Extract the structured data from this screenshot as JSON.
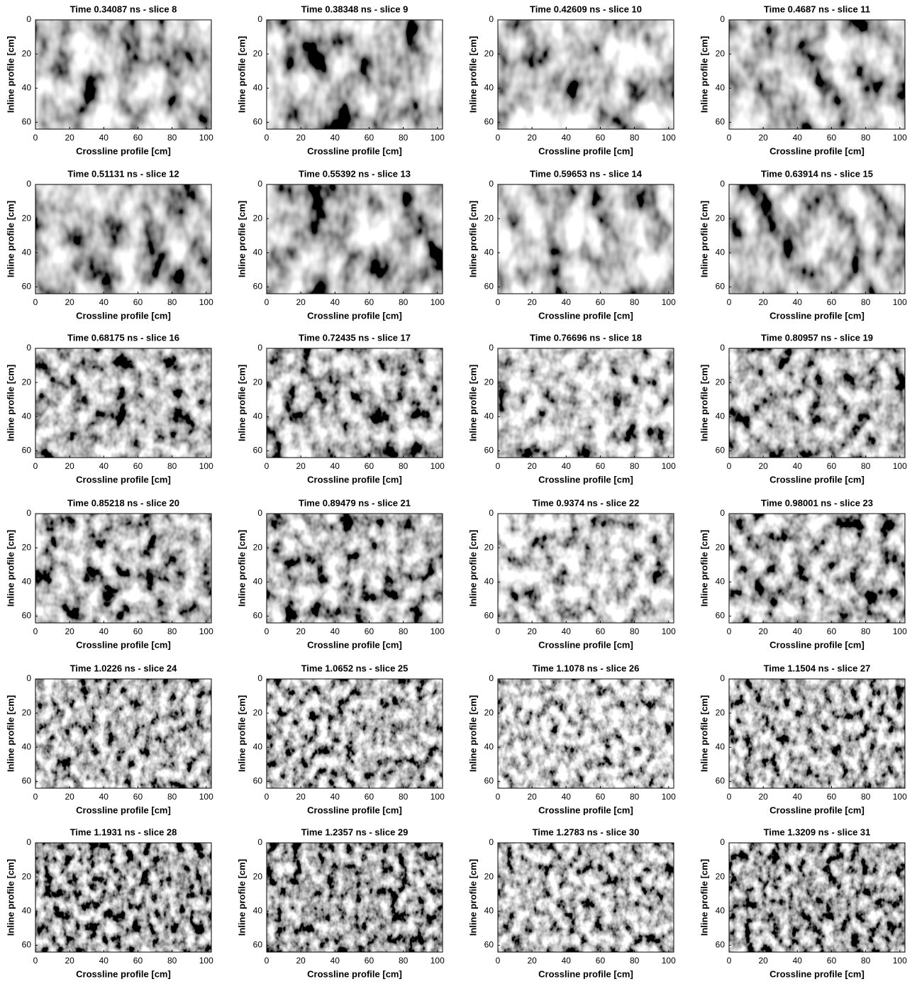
{
  "chart_data": [
    {
      "type": "heatmap",
      "title": "Time 0.34087 ns - slice 8",
      "xlabel": "Crossline profile [cm]",
      "ylabel": "Inline profile [cm]",
      "xlim": [
        0,
        103
      ],
      "ylim": [
        0,
        64
      ],
      "invert_y": true,
      "xticks": [
        0,
        20,
        40,
        60,
        80,
        100
      ],
      "yticks": [
        0,
        20,
        40,
        60
      ],
      "colormap": "gray"
    },
    {
      "type": "heatmap",
      "title": "Time 0.38348 ns - slice 9",
      "xlabel": "Crossline profile [cm]",
      "ylabel": "Inline profile [cm]",
      "xlim": [
        0,
        103
      ],
      "ylim": [
        0,
        64
      ],
      "invert_y": true,
      "xticks": [
        0,
        20,
        40,
        60,
        80,
        100
      ],
      "yticks": [
        0,
        20,
        40,
        60
      ],
      "colormap": "gray"
    },
    {
      "type": "heatmap",
      "title": "Time 0.42609 ns - slice 10",
      "xlabel": "Crossline profile [cm]",
      "ylabel": "Inline profile [cm]",
      "xlim": [
        0,
        103
      ],
      "ylim": [
        0,
        64
      ],
      "invert_y": true,
      "xticks": [
        0,
        20,
        40,
        60,
        80,
        100
      ],
      "yticks": [
        0,
        20,
        40,
        60
      ],
      "colormap": "gray"
    },
    {
      "type": "heatmap",
      "title": "Time 0.4687 ns - slice 11",
      "xlabel": "Crossline profile [cm]",
      "ylabel": "Inline profile [cm]",
      "xlim": [
        0,
        103
      ],
      "ylim": [
        0,
        64
      ],
      "invert_y": true,
      "xticks": [
        0,
        20,
        40,
        60,
        80,
        100
      ],
      "yticks": [
        0,
        20,
        40,
        60
      ],
      "colormap": "gray"
    },
    {
      "type": "heatmap",
      "title": "Time 0.51131 ns - slice 12",
      "xlabel": "Crossline profile [cm]",
      "ylabel": "Inline profile [cm]",
      "xlim": [
        0,
        103
      ],
      "ylim": [
        0,
        64
      ],
      "invert_y": true,
      "xticks": [
        0,
        20,
        40,
        60,
        80,
        100
      ],
      "yticks": [
        0,
        20,
        40,
        60
      ],
      "colormap": "gray"
    },
    {
      "type": "heatmap",
      "title": "Time 0.55392 ns - slice 13",
      "xlabel": "Crossline profile [cm]",
      "ylabel": "Inline profile [cm]",
      "xlim": [
        0,
        103
      ],
      "ylim": [
        0,
        64
      ],
      "invert_y": true,
      "xticks": [
        0,
        20,
        40,
        60,
        80,
        100
      ],
      "yticks": [
        0,
        20,
        40,
        60
      ],
      "colormap": "gray"
    },
    {
      "type": "heatmap",
      "title": "Time 0.59653 ns - slice 14",
      "xlabel": "Crossline profile [cm]",
      "ylabel": "Inline profile [cm]",
      "xlim": [
        0,
        103
      ],
      "ylim": [
        0,
        64
      ],
      "invert_y": true,
      "xticks": [
        0,
        20,
        40,
        60,
        80,
        100
      ],
      "yticks": [
        0,
        20,
        40,
        60
      ],
      "colormap": "gray"
    },
    {
      "type": "heatmap",
      "title": "Time 0.63914 ns - slice 15",
      "xlabel": "Crossline profile [cm]",
      "ylabel": "Inline profile [cm]",
      "xlim": [
        0,
        103
      ],
      "ylim": [
        0,
        64
      ],
      "invert_y": true,
      "xticks": [
        0,
        20,
        40,
        60,
        80,
        100
      ],
      "yticks": [
        0,
        20,
        40,
        60
      ],
      "colormap": "gray"
    },
    {
      "type": "heatmap",
      "title": "Time 0.68175 ns - slice 16",
      "xlabel": "Crossline profile [cm]",
      "ylabel": "Inline profile [cm]",
      "xlim": [
        0,
        103
      ],
      "ylim": [
        0,
        64
      ],
      "invert_y": true,
      "xticks": [
        0,
        20,
        40,
        60,
        80,
        100
      ],
      "yticks": [
        0,
        20,
        40,
        60
      ],
      "colormap": "gray"
    },
    {
      "type": "heatmap",
      "title": "Time 0.72435 ns - slice 17",
      "xlabel": "Crossline profile [cm]",
      "ylabel": "Inline profile [cm]",
      "xlim": [
        0,
        103
      ],
      "ylim": [
        0,
        64
      ],
      "invert_y": true,
      "xticks": [
        0,
        20,
        40,
        60,
        80,
        100
      ],
      "yticks": [
        0,
        20,
        40,
        60
      ],
      "colormap": "gray"
    },
    {
      "type": "heatmap",
      "title": "Time 0.76696 ns - slice 18",
      "xlabel": "Crossline profile [cm]",
      "ylabel": "Inline profile [cm]",
      "xlim": [
        0,
        103
      ],
      "ylim": [
        0,
        64
      ],
      "invert_y": true,
      "xticks": [
        0,
        20,
        40,
        60,
        80,
        100
      ],
      "yticks": [
        0,
        20,
        40,
        60
      ],
      "colormap": "gray"
    },
    {
      "type": "heatmap",
      "title": "Time 0.80957 ns - slice 19",
      "xlabel": "Crossline profile [cm]",
      "ylabel": "Inline profile [cm]",
      "xlim": [
        0,
        103
      ],
      "ylim": [
        0,
        64
      ],
      "invert_y": true,
      "xticks": [
        0,
        20,
        40,
        60,
        80,
        100
      ],
      "yticks": [
        0,
        20,
        40,
        60
      ],
      "colormap": "gray"
    },
    {
      "type": "heatmap",
      "title": "Time 0.85218 ns - slice 20",
      "xlabel": "Crossline profile [cm]",
      "ylabel": "Inline profile [cm]",
      "xlim": [
        0,
        103
      ],
      "ylim": [
        0,
        64
      ],
      "invert_y": true,
      "xticks": [
        0,
        20,
        40,
        60,
        80,
        100
      ],
      "yticks": [
        0,
        20,
        40,
        60
      ],
      "colormap": "gray"
    },
    {
      "type": "heatmap",
      "title": "Time 0.89479 ns - slice 21",
      "xlabel": "Crossline profile [cm]",
      "ylabel": "Inline profile [cm]",
      "xlim": [
        0,
        103
      ],
      "ylim": [
        0,
        64
      ],
      "invert_y": true,
      "xticks": [
        0,
        20,
        40,
        60,
        80,
        100
      ],
      "yticks": [
        0,
        20,
        40,
        60
      ],
      "colormap": "gray"
    },
    {
      "type": "heatmap",
      "title": "Time 0.9374 ns - slice 22",
      "xlabel": "Crossline profile [cm]",
      "ylabel": "Inline profile [cm]",
      "xlim": [
        0,
        103
      ],
      "ylim": [
        0,
        64
      ],
      "invert_y": true,
      "xticks": [
        0,
        20,
        40,
        60,
        80,
        100
      ],
      "yticks": [
        0,
        20,
        40,
        60
      ],
      "colormap": "gray"
    },
    {
      "type": "heatmap",
      "title": "Time 0.98001 ns - slice 23",
      "xlabel": "Crossline profile [cm]",
      "ylabel": "Inline profile [cm]",
      "xlim": [
        0,
        103
      ],
      "ylim": [
        0,
        64
      ],
      "invert_y": true,
      "xticks": [
        0,
        20,
        40,
        60,
        80,
        100
      ],
      "yticks": [
        0,
        20,
        40,
        60
      ],
      "colormap": "gray"
    },
    {
      "type": "heatmap",
      "title": "Time 1.0226 ns - slice 24",
      "xlabel": "Crossline profile [cm]",
      "ylabel": "Inline profile [cm]",
      "xlim": [
        0,
        103
      ],
      "ylim": [
        0,
        64
      ],
      "invert_y": true,
      "xticks": [
        0,
        20,
        40,
        60,
        80,
        100
      ],
      "yticks": [
        0,
        20,
        40,
        60
      ],
      "colormap": "gray"
    },
    {
      "type": "heatmap",
      "title": "Time 1.0652 ns - slice 25",
      "xlabel": "Crossline profile [cm]",
      "ylabel": "Inline profile [cm]",
      "xlim": [
        0,
        103
      ],
      "ylim": [
        0,
        64
      ],
      "invert_y": true,
      "xticks": [
        0,
        20,
        40,
        60,
        80,
        100
      ],
      "yticks": [
        0,
        20,
        40,
        60
      ],
      "colormap": "gray"
    },
    {
      "type": "heatmap",
      "title": "Time 1.1078 ns - slice 26",
      "xlabel": "Crossline profile [cm]",
      "ylabel": "Inline profile [cm]",
      "xlim": [
        0,
        103
      ],
      "ylim": [
        0,
        64
      ],
      "invert_y": true,
      "xticks": [
        0,
        20,
        40,
        60,
        80,
        100
      ],
      "yticks": [
        0,
        20,
        40,
        60
      ],
      "colormap": "gray"
    },
    {
      "type": "heatmap",
      "title": "Time 1.1504 ns - slice 27",
      "xlabel": "Crossline profile [cm]",
      "ylabel": "Inline profile [cm]",
      "xlim": [
        0,
        103
      ],
      "ylim": [
        0,
        64
      ],
      "invert_y": true,
      "xticks": [
        0,
        20,
        40,
        60,
        80,
        100
      ],
      "yticks": [
        0,
        20,
        40,
        60
      ],
      "colormap": "gray"
    },
    {
      "type": "heatmap",
      "title": "Time 1.1931 ns - slice 28",
      "xlabel": "Crossline profile [cm]",
      "ylabel": "Inline profile [cm]",
      "xlim": [
        0,
        103
      ],
      "ylim": [
        0,
        64
      ],
      "invert_y": true,
      "xticks": [
        0,
        20,
        40,
        60,
        80,
        100
      ],
      "yticks": [
        0,
        20,
        40,
        60
      ],
      "colormap": "gray"
    },
    {
      "type": "heatmap",
      "title": "Time 1.2357 ns - slice 29",
      "xlabel": "Crossline profile [cm]",
      "ylabel": "Inline profile [cm]",
      "xlim": [
        0,
        103
      ],
      "ylim": [
        0,
        64
      ],
      "invert_y": true,
      "xticks": [
        0,
        20,
        40,
        60,
        80,
        100
      ],
      "yticks": [
        0,
        20,
        40,
        60
      ],
      "colormap": "gray"
    },
    {
      "type": "heatmap",
      "title": "Time 1.2783 ns - slice 30",
      "xlabel": "Crossline profile [cm]",
      "ylabel": "Inline profile [cm]",
      "xlim": [
        0,
        103
      ],
      "ylim": [
        0,
        64
      ],
      "invert_y": true,
      "xticks": [
        0,
        20,
        40,
        60,
        80,
        100
      ],
      "yticks": [
        0,
        20,
        40,
        60
      ],
      "colormap": "gray"
    },
    {
      "type": "heatmap",
      "title": "Time 1.3209 ns - slice 31",
      "xlabel": "Crossline profile [cm]",
      "ylabel": "Inline profile [cm]",
      "xlim": [
        0,
        103
      ],
      "ylim": [
        0,
        64
      ],
      "invert_y": true,
      "xticks": [
        0,
        20,
        40,
        60,
        80,
        100
      ],
      "yticks": [
        0,
        20,
        40,
        60
      ],
      "colormap": "gray"
    }
  ]
}
